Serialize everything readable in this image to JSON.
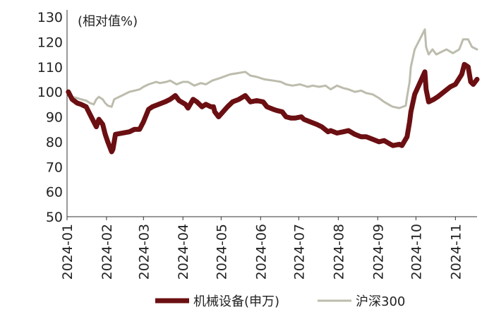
{
  "chart_data": {
    "type": "line",
    "title": "",
    "unit_label": "(相对值%)",
    "xlabel": "",
    "ylabel": "",
    "ylim": [
      50,
      130
    ],
    "yticks": [
      50,
      60,
      70,
      80,
      90,
      100,
      110,
      120,
      130
    ],
    "xlim": [
      "2024-01-01",
      "2024-11-18"
    ],
    "xticks": [
      "2024-01",
      "2024-02",
      "2024-03",
      "2024-04",
      "2024-05",
      "2024-06",
      "2024-07",
      "2024-08",
      "2024-09",
      "2024-10",
      "2024-11"
    ],
    "grid": false,
    "legend_position": "bottom",
    "series": [
      {
        "name": "机械设备(申万)",
        "color": "#6b0f12",
        "points": [
          [
            "2024-01-02",
            100
          ],
          [
            "2024-01-05",
            97
          ],
          [
            "2024-01-09",
            95.5
          ],
          [
            "2024-01-12",
            95
          ],
          [
            "2024-01-16",
            94
          ],
          [
            "2024-01-19",
            91
          ],
          [
            "2024-01-22",
            88
          ],
          [
            "2024-01-24",
            86
          ],
          [
            "2024-01-26",
            89
          ],
          [
            "2024-01-29",
            87
          ],
          [
            "2024-01-31",
            83
          ],
          [
            "2024-02-02",
            80
          ],
          [
            "2024-02-05",
            76
          ],
          [
            "2024-02-06",
            77
          ],
          [
            "2024-02-08",
            83
          ],
          [
            "2024-02-19",
            84
          ],
          [
            "2024-02-23",
            85
          ],
          [
            "2024-02-27",
            85
          ],
          [
            "2024-03-01",
            88
          ],
          [
            "2024-03-05",
            93
          ],
          [
            "2024-03-08",
            94
          ],
          [
            "2024-03-13",
            95
          ],
          [
            "2024-03-18",
            96
          ],
          [
            "2024-03-22",
            97
          ],
          [
            "2024-03-26",
            98.5
          ],
          [
            "2024-03-29",
            96.5
          ],
          [
            "2024-04-03",
            95
          ],
          [
            "2024-04-05",
            93.5
          ],
          [
            "2024-04-09",
            97
          ],
          [
            "2024-04-12",
            96
          ],
          [
            "2024-04-16",
            94
          ],
          [
            "2024-04-19",
            95
          ],
          [
            "2024-04-23",
            94
          ],
          [
            "2024-04-25",
            94
          ],
          [
            "2024-04-26",
            92
          ],
          [
            "2024-04-29",
            90
          ],
          [
            "2024-05-06",
            94
          ],
          [
            "2024-05-10",
            96
          ],
          [
            "2024-05-15",
            97
          ],
          [
            "2024-05-20",
            98.5
          ],
          [
            "2024-05-24",
            96
          ],
          [
            "2024-05-29",
            96.5
          ],
          [
            "2024-06-03",
            96
          ],
          [
            "2024-06-06",
            94
          ],
          [
            "2024-06-11",
            93
          ],
          [
            "2024-06-14",
            92.5
          ],
          [
            "2024-06-18",
            92
          ],
          [
            "2024-06-21",
            90
          ],
          [
            "2024-06-25",
            89.5
          ],
          [
            "2024-06-28",
            89.5
          ],
          [
            "2024-07-03",
            90
          ],
          [
            "2024-07-05",
            89
          ],
          [
            "2024-07-10",
            88
          ],
          [
            "2024-07-15",
            87
          ],
          [
            "2024-07-19",
            86
          ],
          [
            "2024-07-24",
            84
          ],
          [
            "2024-07-26",
            84.5
          ],
          [
            "2024-07-31",
            83.5
          ],
          [
            "2024-08-05",
            84
          ],
          [
            "2024-08-09",
            84.5
          ],
          [
            "2024-08-14",
            83
          ],
          [
            "2024-08-19",
            82
          ],
          [
            "2024-08-23",
            82
          ],
          [
            "2024-08-28",
            81
          ],
          [
            "2024-09-02",
            80
          ],
          [
            "2024-09-06",
            80.5
          ],
          [
            "2024-09-11",
            79
          ],
          [
            "2024-09-13",
            78.5
          ],
          [
            "2024-09-18",
            79
          ],
          [
            "2024-09-20",
            78.5
          ],
          [
            "2024-09-24",
            82
          ],
          [
            "2024-09-26",
            88
          ],
          [
            "2024-09-27",
            92
          ],
          [
            "2024-09-30",
            99
          ],
          [
            "2024-10-08",
            108
          ],
          [
            "2024-10-09",
            101
          ],
          [
            "2024-10-11",
            96
          ],
          [
            "2024-10-15",
            97
          ],
          [
            "2024-10-18",
            98
          ],
          [
            "2024-10-23",
            100
          ],
          [
            "2024-10-28",
            102
          ],
          [
            "2024-11-01",
            103
          ],
          [
            "2024-11-06",
            107
          ],
          [
            "2024-11-08",
            111
          ],
          [
            "2024-11-11",
            110
          ],
          [
            "2024-11-13",
            104
          ],
          [
            "2024-11-15",
            103
          ],
          [
            "2024-11-18",
            105
          ]
        ]
      },
      {
        "name": "沪深300",
        "color": "#bdbcad",
        "points": [
          [
            "2024-01-02",
            100
          ],
          [
            "2024-01-05",
            98
          ],
          [
            "2024-01-09",
            97.5
          ],
          [
            "2024-01-12",
            97
          ],
          [
            "2024-01-16",
            96.5
          ],
          [
            "2024-01-19",
            95.5
          ],
          [
            "2024-01-22",
            95
          ],
          [
            "2024-01-24",
            97
          ],
          [
            "2024-01-26",
            98
          ],
          [
            "2024-01-29",
            97
          ],
          [
            "2024-01-31",
            95.5
          ],
          [
            "2024-02-02",
            94.5
          ],
          [
            "2024-02-05",
            94
          ],
          [
            "2024-02-07",
            97
          ],
          [
            "2024-02-19",
            100
          ],
          [
            "2024-02-23",
            100.5
          ],
          [
            "2024-02-27",
            101
          ],
          [
            "2024-03-01",
            102
          ],
          [
            "2024-03-05",
            103
          ],
          [
            "2024-03-11",
            104
          ],
          [
            "2024-03-14",
            103.5
          ],
          [
            "2024-03-19",
            104
          ],
          [
            "2024-03-22",
            104.5
          ],
          [
            "2024-03-27",
            103
          ],
          [
            "2024-04-01",
            104
          ],
          [
            "2024-04-05",
            104
          ],
          [
            "2024-04-10",
            102.5
          ],
          [
            "2024-04-15",
            103.5
          ],
          [
            "2024-04-19",
            103
          ],
          [
            "2024-04-24",
            104.5
          ],
          [
            "2024-04-30",
            105.5
          ],
          [
            "2024-05-08",
            107
          ],
          [
            "2024-05-14",
            107.5
          ],
          [
            "2024-05-20",
            108
          ],
          [
            "2024-05-24",
            106.5
          ],
          [
            "2024-05-29",
            106
          ],
          [
            "2024-06-04",
            105
          ],
          [
            "2024-06-11",
            104.5
          ],
          [
            "2024-06-17",
            104
          ],
          [
            "2024-06-21",
            103
          ],
          [
            "2024-06-26",
            102.5
          ],
          [
            "2024-07-02",
            103
          ],
          [
            "2024-07-08",
            102
          ],
          [
            "2024-07-12",
            102.5
          ],
          [
            "2024-07-17",
            102
          ],
          [
            "2024-07-22",
            102.5
          ],
          [
            "2024-07-26",
            101
          ],
          [
            "2024-07-31",
            102.5
          ],
          [
            "2024-08-05",
            101.5
          ],
          [
            "2024-08-09",
            101
          ],
          [
            "2024-08-14",
            100
          ],
          [
            "2024-08-19",
            100.5
          ],
          [
            "2024-08-23",
            99.5
          ],
          [
            "2024-08-28",
            99
          ],
          [
            "2024-09-02",
            97.5
          ],
          [
            "2024-09-06",
            96
          ],
          [
            "2024-09-11",
            94.5
          ],
          [
            "2024-09-13",
            94
          ],
          [
            "2024-09-18",
            93.5
          ],
          [
            "2024-09-23",
            94.5
          ],
          [
            "2024-09-24",
            98
          ],
          [
            "2024-09-26",
            104
          ],
          [
            "2024-09-27",
            110
          ],
          [
            "2024-09-30",
            117
          ],
          [
            "2024-10-08",
            125
          ],
          [
            "2024-10-09",
            118
          ],
          [
            "2024-10-11",
            115
          ],
          [
            "2024-10-14",
            117
          ],
          [
            "2024-10-17",
            115
          ],
          [
            "2024-10-21",
            116
          ],
          [
            "2024-10-25",
            117
          ],
          [
            "2024-10-30",
            115.5
          ],
          [
            "2024-11-04",
            117
          ],
          [
            "2024-11-07",
            121
          ],
          [
            "2024-11-11",
            121
          ],
          [
            "2024-11-14",
            118
          ],
          [
            "2024-11-18",
            117
          ]
        ]
      }
    ]
  }
}
